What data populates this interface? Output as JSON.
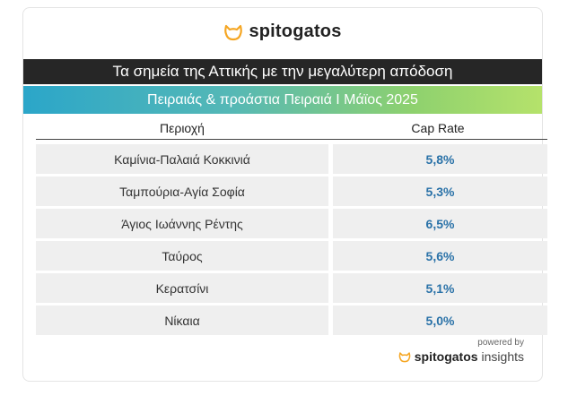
{
  "brand": {
    "name": "spitogatos",
    "powered_by": "powered by",
    "insights": "insights",
    "accent_color": "#f5a623"
  },
  "title": "Τα σημεία της Αττικής με την μεγαλύτερη απόδοση",
  "subtitle": "Πειραιάς & προάστια Πειραιά Ι Μάϊος 2025",
  "table": {
    "headers": [
      "Περιοχή",
      "Cap Rate"
    ],
    "rows": [
      {
        "area": "Καμίνια-Παλαιά Κοκκινιά",
        "cap_rate": "5,8%"
      },
      {
        "area": "Ταμπούρια-Αγία Σοφία",
        "cap_rate": "5,3%"
      },
      {
        "area": "Άγιος Ιωάννης Ρέντης",
        "cap_rate": "6,5%"
      },
      {
        "area": "Ταύρος",
        "cap_rate": "5,6%"
      },
      {
        "area": "Κερατσίνι",
        "cap_rate": "5,1%"
      },
      {
        "area": "Νίκαια",
        "cap_rate": "5,0%"
      }
    ]
  }
}
